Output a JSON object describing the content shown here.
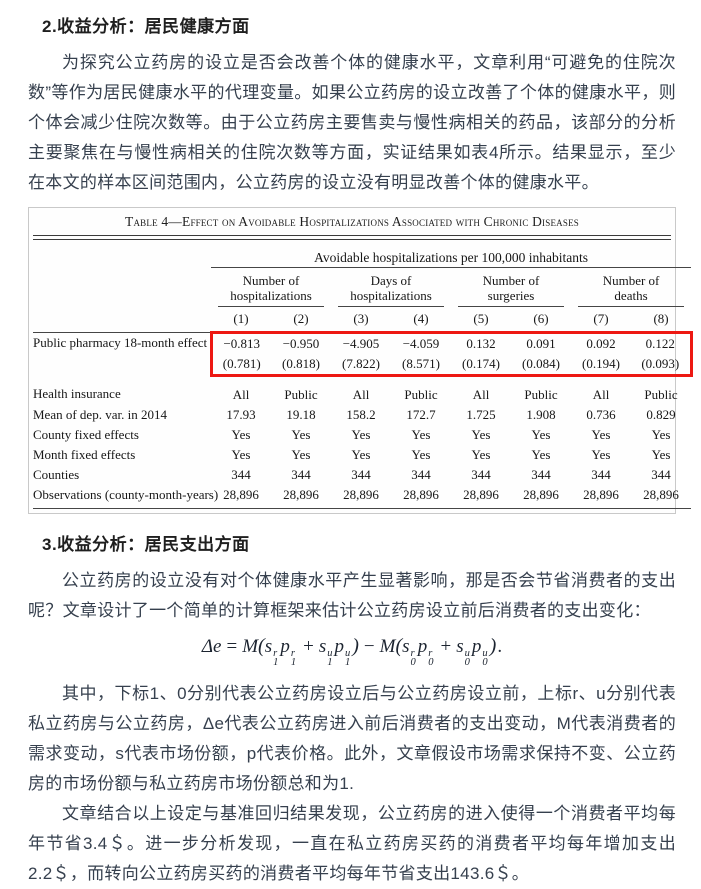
{
  "page": {
    "section2_heading": "2.收益分析：居民健康方面",
    "p1": "为探究公立药房的设立是否会改善个体的健康水平，文章利用“可避免的住院次数”等作为居民健康水平的代理变量。如果公立药房的设立改善了个体的健康水平，则个体会减少住院次数等。由于公立药房主要售卖与慢性病相关的药品，该部分的分析主要聚焦在与慢性病相关的住院次数等方面，实证结果如表4所示。结果显示，至少在本文的样本区间范围内，公立药房的设立没有明显改善个体的健康水平。",
    "section3_heading": "3.收益分析：居民支出方面",
    "p2": "公立药房的设立没有对个体健康水平产生显著影响，那是否会节省消费者的支出呢？文章设计了一个简单的计算框架来估计公立药房设立前后消费者的支出变化：",
    "p3": "其中，下标1、0分别代表公立药房设立后与公立药房设立前，上标r、u分别代表私立药房与公立药房，Δe代表公立药房进入前后消费者的支出变动，M代表消费者的需求变动，s代表市场份额，p代表价格。此外，文章假设市场需求保持不变、公立药房的市场份额与私立药房市场份额总和为1.",
    "p4": "文章结合以上设定与基准回归结果发现，公立药房的进入使得一个消费者平均每年节省3.4＄。进一步分析发现，一直在私立药房买药的消费者平均每年增加支出2.2＄，而转向公立药房买药的消费者平均每年节省支出143.6＄。"
  },
  "table": {
    "title": "Table 4—Effect on Avoidable Hospitalizations Associated with Chronic Diseases",
    "span_header": "Avoidable hospitalizations per 100,000 inhabitants",
    "groups": [
      [
        "Number of",
        "hospitalizations"
      ],
      [
        "Days of",
        "hospitalizations"
      ],
      [
        "Number of",
        "surgeries"
      ],
      [
        "Number of",
        "deaths"
      ]
    ],
    "col_numbers": [
      "(1)",
      "(2)",
      "(3)",
      "(4)",
      "(5)",
      "(6)",
      "(7)",
      "(8)"
    ],
    "rows": [
      {
        "label": "Public pharmacy 18-month effect",
        "hl": "top",
        "values": [
          "−0.813",
          "−0.950",
          "−4.905",
          "−4.059",
          "0.132",
          "0.091",
          "0.092",
          "0.122"
        ]
      },
      {
        "label": "",
        "hl": "bottom",
        "values": [
          "(0.781)",
          "(0.818)",
          "(7.822)",
          "(8.571)",
          "(0.174)",
          "(0.084)",
          "(0.194)",
          "(0.093)"
        ]
      },
      {
        "label": "Health insurance",
        "gap": true,
        "values": [
          "All",
          "Public",
          "All",
          "Public",
          "All",
          "Public",
          "All",
          "Public"
        ]
      },
      {
        "label": "Mean of dep. var. in 2014",
        "values": [
          "17.93",
          "19.18",
          "158.2",
          "172.7",
          "1.725",
          "1.908",
          "0.736",
          "0.829"
        ]
      },
      {
        "label": "County fixed effects",
        "values": [
          "Yes",
          "Yes",
          "Yes",
          "Yes",
          "Yes",
          "Yes",
          "Yes",
          "Yes"
        ]
      },
      {
        "label": "Month fixed effects",
        "values": [
          "Yes",
          "Yes",
          "Yes",
          "Yes",
          "Yes",
          "Yes",
          "Yes",
          "Yes"
        ]
      },
      {
        "label": "Counties",
        "values": [
          "344",
          "344",
          "344",
          "344",
          "344",
          "344",
          "344",
          "344"
        ]
      },
      {
        "label": "Observations (county-month-years)",
        "values": [
          "28,896",
          "28,896",
          "28,896",
          "28,896",
          "28,896",
          "28,896",
          "28,896",
          "28,896"
        ]
      }
    ]
  },
  "formula": {
    "tokens": [
      {
        "text": "Δe",
        "style": "var"
      },
      {
        "text": "=",
        "style": "op"
      },
      {
        "text": "M",
        "style": "var"
      },
      {
        "text": "(",
        "style": "paren"
      },
      {
        "base": "s",
        "sup": "r",
        "sub": "1"
      },
      {
        "base": "p",
        "sup": "r",
        "sub": "1"
      },
      {
        "text": "+",
        "style": "op"
      },
      {
        "base": "s",
        "sup": "u",
        "sub": "1"
      },
      {
        "base": "p",
        "sup": "u",
        "sub": "1"
      },
      {
        "text": ")",
        "style": "paren"
      },
      {
        "text": "−",
        "style": "op"
      },
      {
        "text": "M",
        "style": "var"
      },
      {
        "text": "(",
        "style": "paren"
      },
      {
        "base": "s",
        "sup": "r",
        "sub": "0"
      },
      {
        "base": "p",
        "sup": "r",
        "sub": "0"
      },
      {
        "text": "+",
        "style": "op"
      },
      {
        "base": "s",
        "sup": "u",
        "sub": "0"
      },
      {
        "base": "p",
        "sup": "u",
        "sub": "0"
      },
      {
        "text": ")",
        "style": "paren"
      },
      {
        "text": ".",
        "style": "end"
      }
    ]
  },
  "colors": {
    "highlight_border": "#ed1812",
    "table_border": "#c9c9c9",
    "body_text": "#36404e"
  }
}
